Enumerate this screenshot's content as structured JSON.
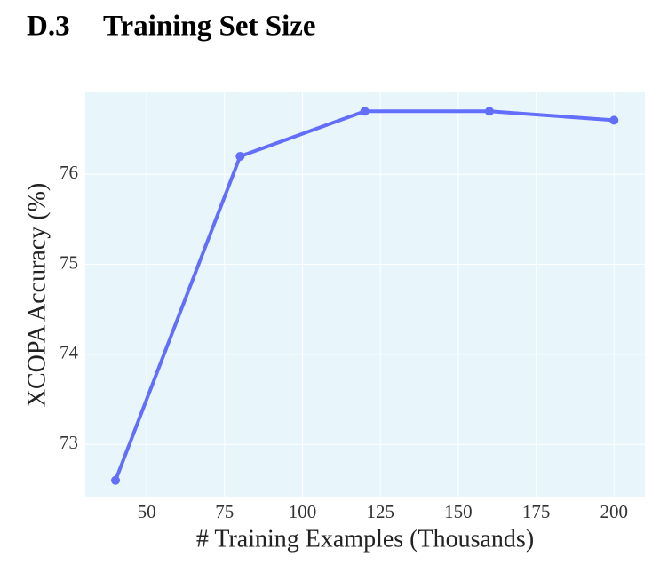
{
  "heading": {
    "number": "D.3",
    "title": "Training Set Size"
  },
  "chart_data": {
    "type": "line",
    "x_label": "# Training Examples (Thousands)",
    "y_label": "XCOPA Accuracy (%)",
    "x": [
      40,
      80,
      120,
      160,
      200
    ],
    "series": [
      {
        "name": "XCOPA Accuracy",
        "color": "#636efa",
        "values": [
          72.6,
          76.2,
          76.7,
          76.7,
          76.6
        ]
      }
    ],
    "xlim": [
      30.3,
      209.9
    ],
    "xticks": [
      50,
      75,
      100,
      125,
      150,
      175,
      200
    ],
    "ylim": [
      72.41,
      76.91
    ],
    "yticks": [
      73,
      74,
      75,
      76
    ],
    "grid": true,
    "background": "#e8f6fc"
  }
}
